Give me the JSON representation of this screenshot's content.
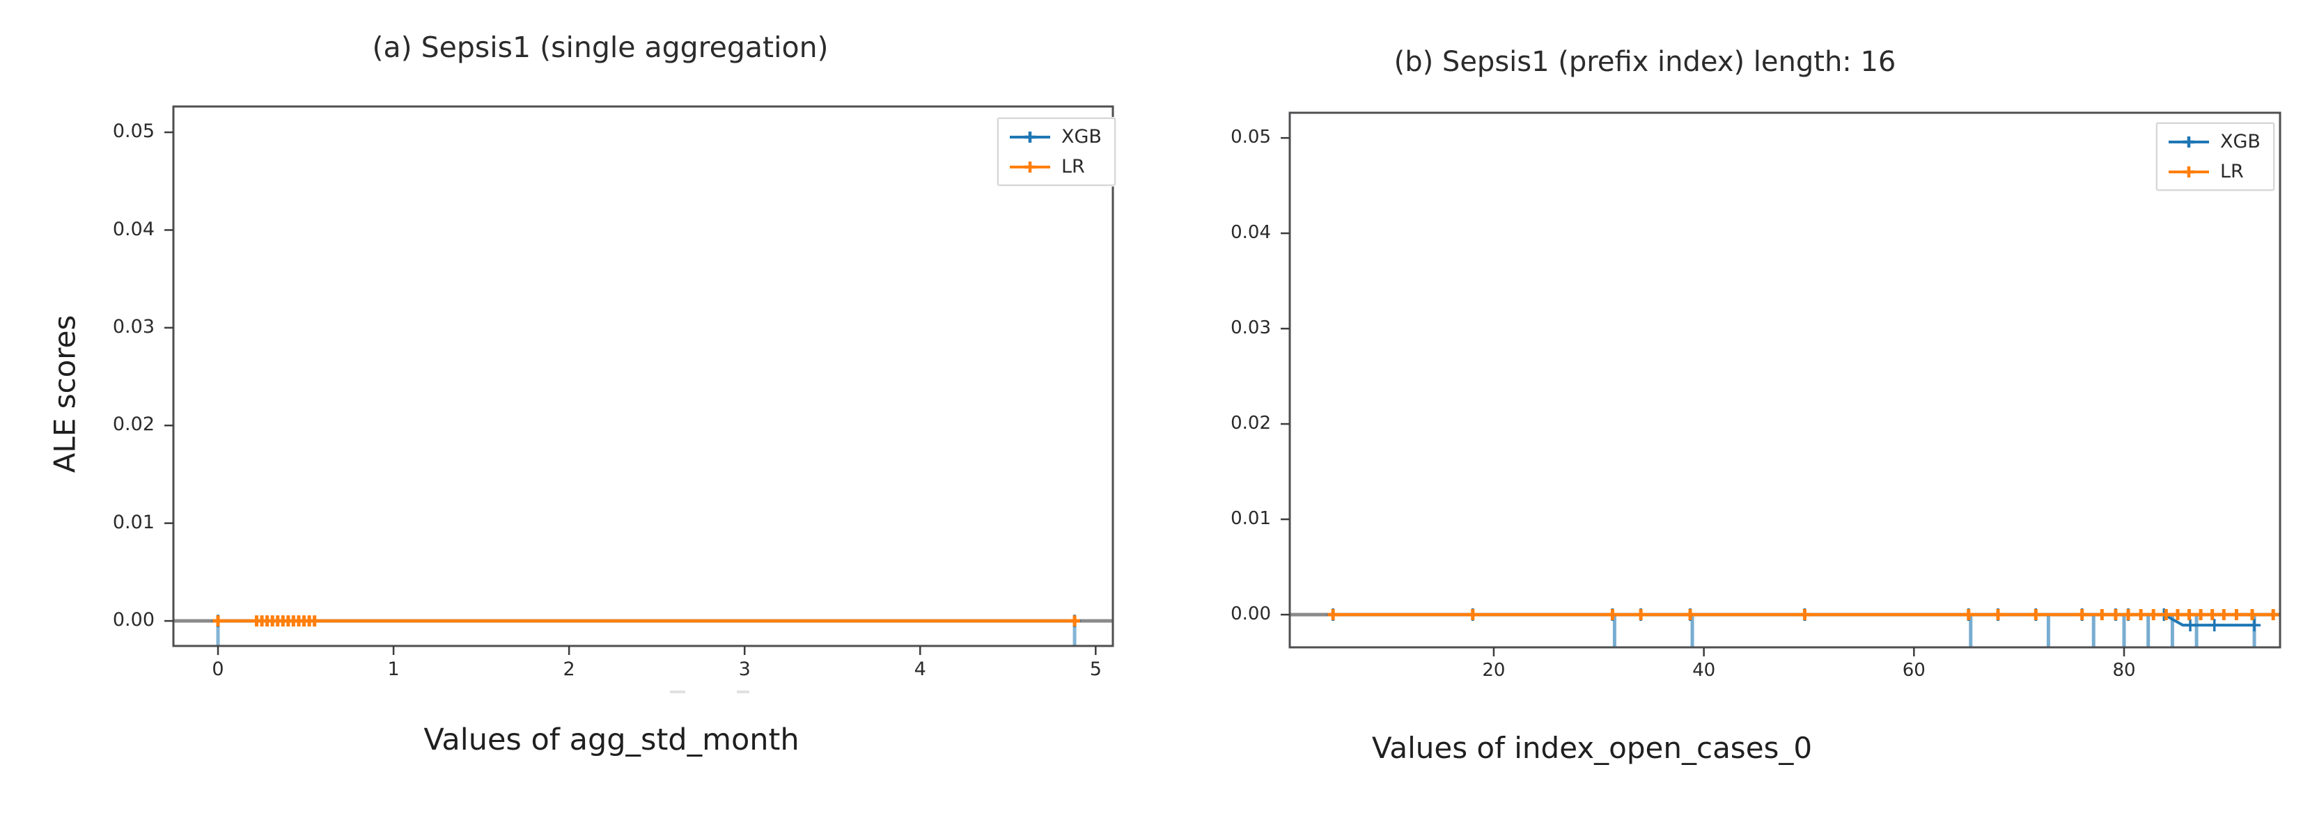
{
  "figure": {
    "background": "#ffffff",
    "shared_ylabel": "ALE scores"
  },
  "colors": {
    "xgb": "#1f77b4",
    "lr": "#ff7f0e",
    "zero_line": "#8a8a8a",
    "spine": "#4f4f52",
    "tick": "#3c3c3c"
  },
  "chart_data": [
    {
      "type": "line",
      "title": "(a) Sepsis1 (single aggregation)",
      "xlabel": "Values of agg_std_month",
      "ylabel": "ALE scores",
      "xlim": [
        -0.254,
        5.098
      ],
      "ylim": [
        -0.00256,
        0.05264
      ],
      "x_ticks": [
        0,
        1,
        2,
        3,
        4,
        5
      ],
      "x_tick_labels": [
        "0",
        "1",
        "2",
        "3",
        "4",
        "5"
      ],
      "y_ticks": [
        0.0,
        0.01,
        0.02,
        0.03,
        0.04,
        0.05
      ],
      "y_tick_labels": [
        "0.00",
        "0.01",
        "0.02",
        "0.03",
        "0.04",
        "0.05"
      ],
      "grid": false,
      "zero_line": true,
      "legend_position": "upper right",
      "legend": [
        "XGB",
        "LR"
      ],
      "series": [
        {
          "name": "XGB",
          "color": "#1f77b4",
          "marker": "+",
          "x": [
            0.0,
            4.88
          ],
          "y": [
            0.0,
            0.0
          ],
          "rug_x": [
            0.0,
            4.88
          ]
        },
        {
          "name": "LR",
          "color": "#ff7f0e",
          "marker": "+",
          "x": [
            0.0,
            4.88
          ],
          "y": [
            0.0,
            0.0
          ],
          "markers_x": [
            0.0,
            0.22,
            0.25,
            0.28,
            0.31,
            0.34,
            0.37,
            0.4,
            0.43,
            0.46,
            0.49,
            0.52,
            0.55,
            4.88
          ],
          "markers_y": [
            0,
            0,
            0,
            0,
            0,
            0,
            0,
            0,
            0,
            0,
            0,
            0,
            0,
            0
          ]
        }
      ]
    },
    {
      "type": "line",
      "title": "(b) Sepsis1 (prefix index) length: 16",
      "xlabel": "Values of index_open_cases_0",
      "ylabel": "",
      "xlim": [
        0.58,
        94.85
      ],
      "ylim": [
        -0.00343,
        0.05264
      ],
      "x_ticks": [
        20,
        40,
        60,
        80
      ],
      "x_tick_labels": [
        "20",
        "40",
        "60",
        "80"
      ],
      "y_ticks": [
        0.0,
        0.01,
        0.02,
        0.03,
        0.04,
        0.05
      ],
      "y_tick_labels": [
        "0.00",
        "0.01",
        "0.02",
        "0.03",
        "0.04",
        "0.05"
      ],
      "grid": false,
      "zero_line": true,
      "legend_position": "upper right",
      "legend": [
        "XGB",
        "LR"
      ],
      "series": [
        {
          "name": "XGB",
          "color": "#1f77b4",
          "marker": "+",
          "x": [
            4.7,
            83.8,
            85.6,
            92.4
          ],
          "y": [
            0.0,
            0.0,
            -0.0011,
            -0.0011
          ],
          "markers_x": [
            4.7,
            18,
            31.3,
            34,
            38.7,
            49.6,
            65.2,
            68,
            71.6,
            76,
            79.2,
            80.4,
            83.8,
            86.3,
            88.6,
            92.4
          ],
          "markers_y": [
            0,
            0,
            0,
            0,
            0,
            0,
            0,
            0,
            0,
            0,
            0,
            0,
            0,
            -0.0011,
            -0.0011,
            -0.0011
          ],
          "rug_x": [
            31.5,
            38.9,
            65.4,
            72.8,
            77.1,
            80.0,
            82.3,
            84.6,
            86.9,
            92.4
          ]
        },
        {
          "name": "LR",
          "color": "#ff7f0e",
          "marker": "+",
          "x": [
            4.7,
            94.2
          ],
          "y": [
            0.0,
            0.0
          ],
          "markers_x": [
            4.7,
            18,
            31.3,
            34,
            38.7,
            49.6,
            65.2,
            68,
            71.6,
            76,
            77.9,
            79.2,
            80.4,
            81.6,
            82.8,
            84.0,
            85.1,
            86.2,
            87.3,
            88.4,
            89.5,
            90.7,
            92.2,
            94.2
          ],
          "markers_y": [
            0,
            0,
            0,
            0,
            0,
            0,
            0,
            0,
            0,
            0,
            0,
            0,
            0,
            0,
            0,
            0,
            0,
            0,
            0,
            0,
            0,
            0,
            0,
            0
          ]
        }
      ]
    }
  ]
}
